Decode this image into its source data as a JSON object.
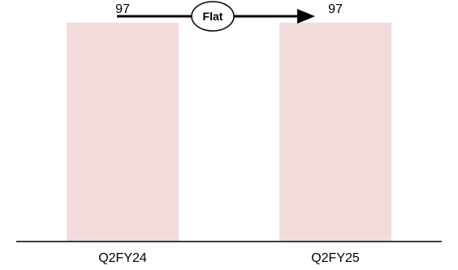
{
  "chart_data": {
    "type": "bar",
    "categories": [
      "Q2FY24",
      "Q2FY25"
    ],
    "values": [
      97,
      97
    ],
    "ylim": [
      0,
      107
    ],
    "bar_color": "#f2dcdb",
    "grid": false,
    "annotation": {
      "label": "Flat",
      "shape": "arrow-right"
    }
  }
}
